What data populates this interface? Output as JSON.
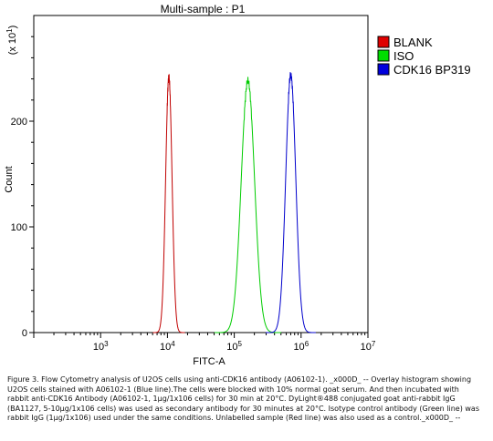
{
  "chart_data": {
    "type": "line",
    "title": "Multi-sample : P1",
    "xlabel": "FITC-A",
    "ylabel": "Count",
    "y_multiplier_label": "(x 10^1)",
    "x_scale": "log",
    "xlim": [
      100,
      10000000
    ],
    "ylim": [
      0,
      300
    ],
    "y_ticks": [
      0,
      100,
      200
    ],
    "x_ticks": [
      {
        "value": 1000,
        "base": "10",
        "exp": "3"
      },
      {
        "value": 10000,
        "base": "10",
        "exp": "4"
      },
      {
        "value": 100000,
        "base": "10",
        "exp": "5"
      },
      {
        "value": 1000000,
        "base": "10",
        "exp": "6"
      },
      {
        "value": 10000000,
        "base": "10",
        "exp": "7"
      }
    ],
    "legend_position": "top-right",
    "series": [
      {
        "name": "BLANK",
        "color": "#c00000",
        "legend_fill": "#e00000",
        "peak_x": 10500,
        "peak_y": 242,
        "log_width": 0.048,
        "points": [
          [
            6000,
            0
          ],
          [
            7500,
            2
          ],
          [
            8300,
            12
          ],
          [
            8900,
            45
          ],
          [
            9400,
            120
          ],
          [
            9800,
            205
          ],
          [
            10100,
            236
          ],
          [
            10400,
            245
          ],
          [
            10800,
            238
          ],
          [
            11300,
            205
          ],
          [
            12000,
            130
          ],
          [
            12800,
            55
          ],
          [
            13600,
            15
          ],
          [
            14800,
            2
          ],
          [
            17000,
            0
          ]
        ]
      },
      {
        "name": "ISO",
        "color": "#00cc00",
        "legend_fill": "#00dd00",
        "peak_x": 160000,
        "peak_y": 238,
        "log_width": 0.1,
        "points": [
          [
            55000,
            0
          ],
          [
            70000,
            3
          ],
          [
            85000,
            18
          ],
          [
            100000,
            60
          ],
          [
            118000,
            140
          ],
          [
            138000,
            215
          ],
          [
            152000,
            236
          ],
          [
            165000,
            239
          ],
          [
            185000,
            225
          ],
          [
            210000,
            170
          ],
          [
            240000,
            95
          ],
          [
            275000,
            35
          ],
          [
            320000,
            8
          ],
          [
            380000,
            1
          ],
          [
            450000,
            0
          ]
        ]
      },
      {
        "name": "CDK16 BP319",
        "color": "#0000cc",
        "legend_fill": "#0000dd",
        "peak_x": 700000,
        "peak_y": 244,
        "log_width": 0.075,
        "points": [
          [
            330000,
            0
          ],
          [
            400000,
            4
          ],
          [
            460000,
            22
          ],
          [
            520000,
            75
          ],
          [
            580000,
            160
          ],
          [
            635000,
            228
          ],
          [
            680000,
            243
          ],
          [
            710000,
            246
          ],
          [
            760000,
            236
          ],
          [
            830000,
            190
          ],
          [
            900000,
            120
          ],
          [
            980000,
            50
          ],
          [
            1080000,
            12
          ],
          [
            1200000,
            2
          ],
          [
            1350000,
            0
          ]
        ]
      }
    ]
  },
  "caption": "Figure 3. Flow Cytometry analysis of U2OS cells using anti-CDK16 antibody (A06102-1). _x000D_ -- Overlay histogram showing U2OS cells stained with A06102-1 (Blue line).The cells were blocked with 10% normal goat serum. And then incubated with rabbit anti-CDK16 Antibody (A06102-1, 1µg/1x106 cells) for 30 min at 20°C. DyLight®488 conjugated goat anti-rabbit IgG (BA1127, 5-10µg/1x106 cells) was used as secondary antibody for 30 minutes at 20°C. Isotype control antibody (Green line) was rabbit IgG (1µg/1x106) used under the same conditions. Unlabelled sample (Red line) was also used as a control._x000D_ --"
}
